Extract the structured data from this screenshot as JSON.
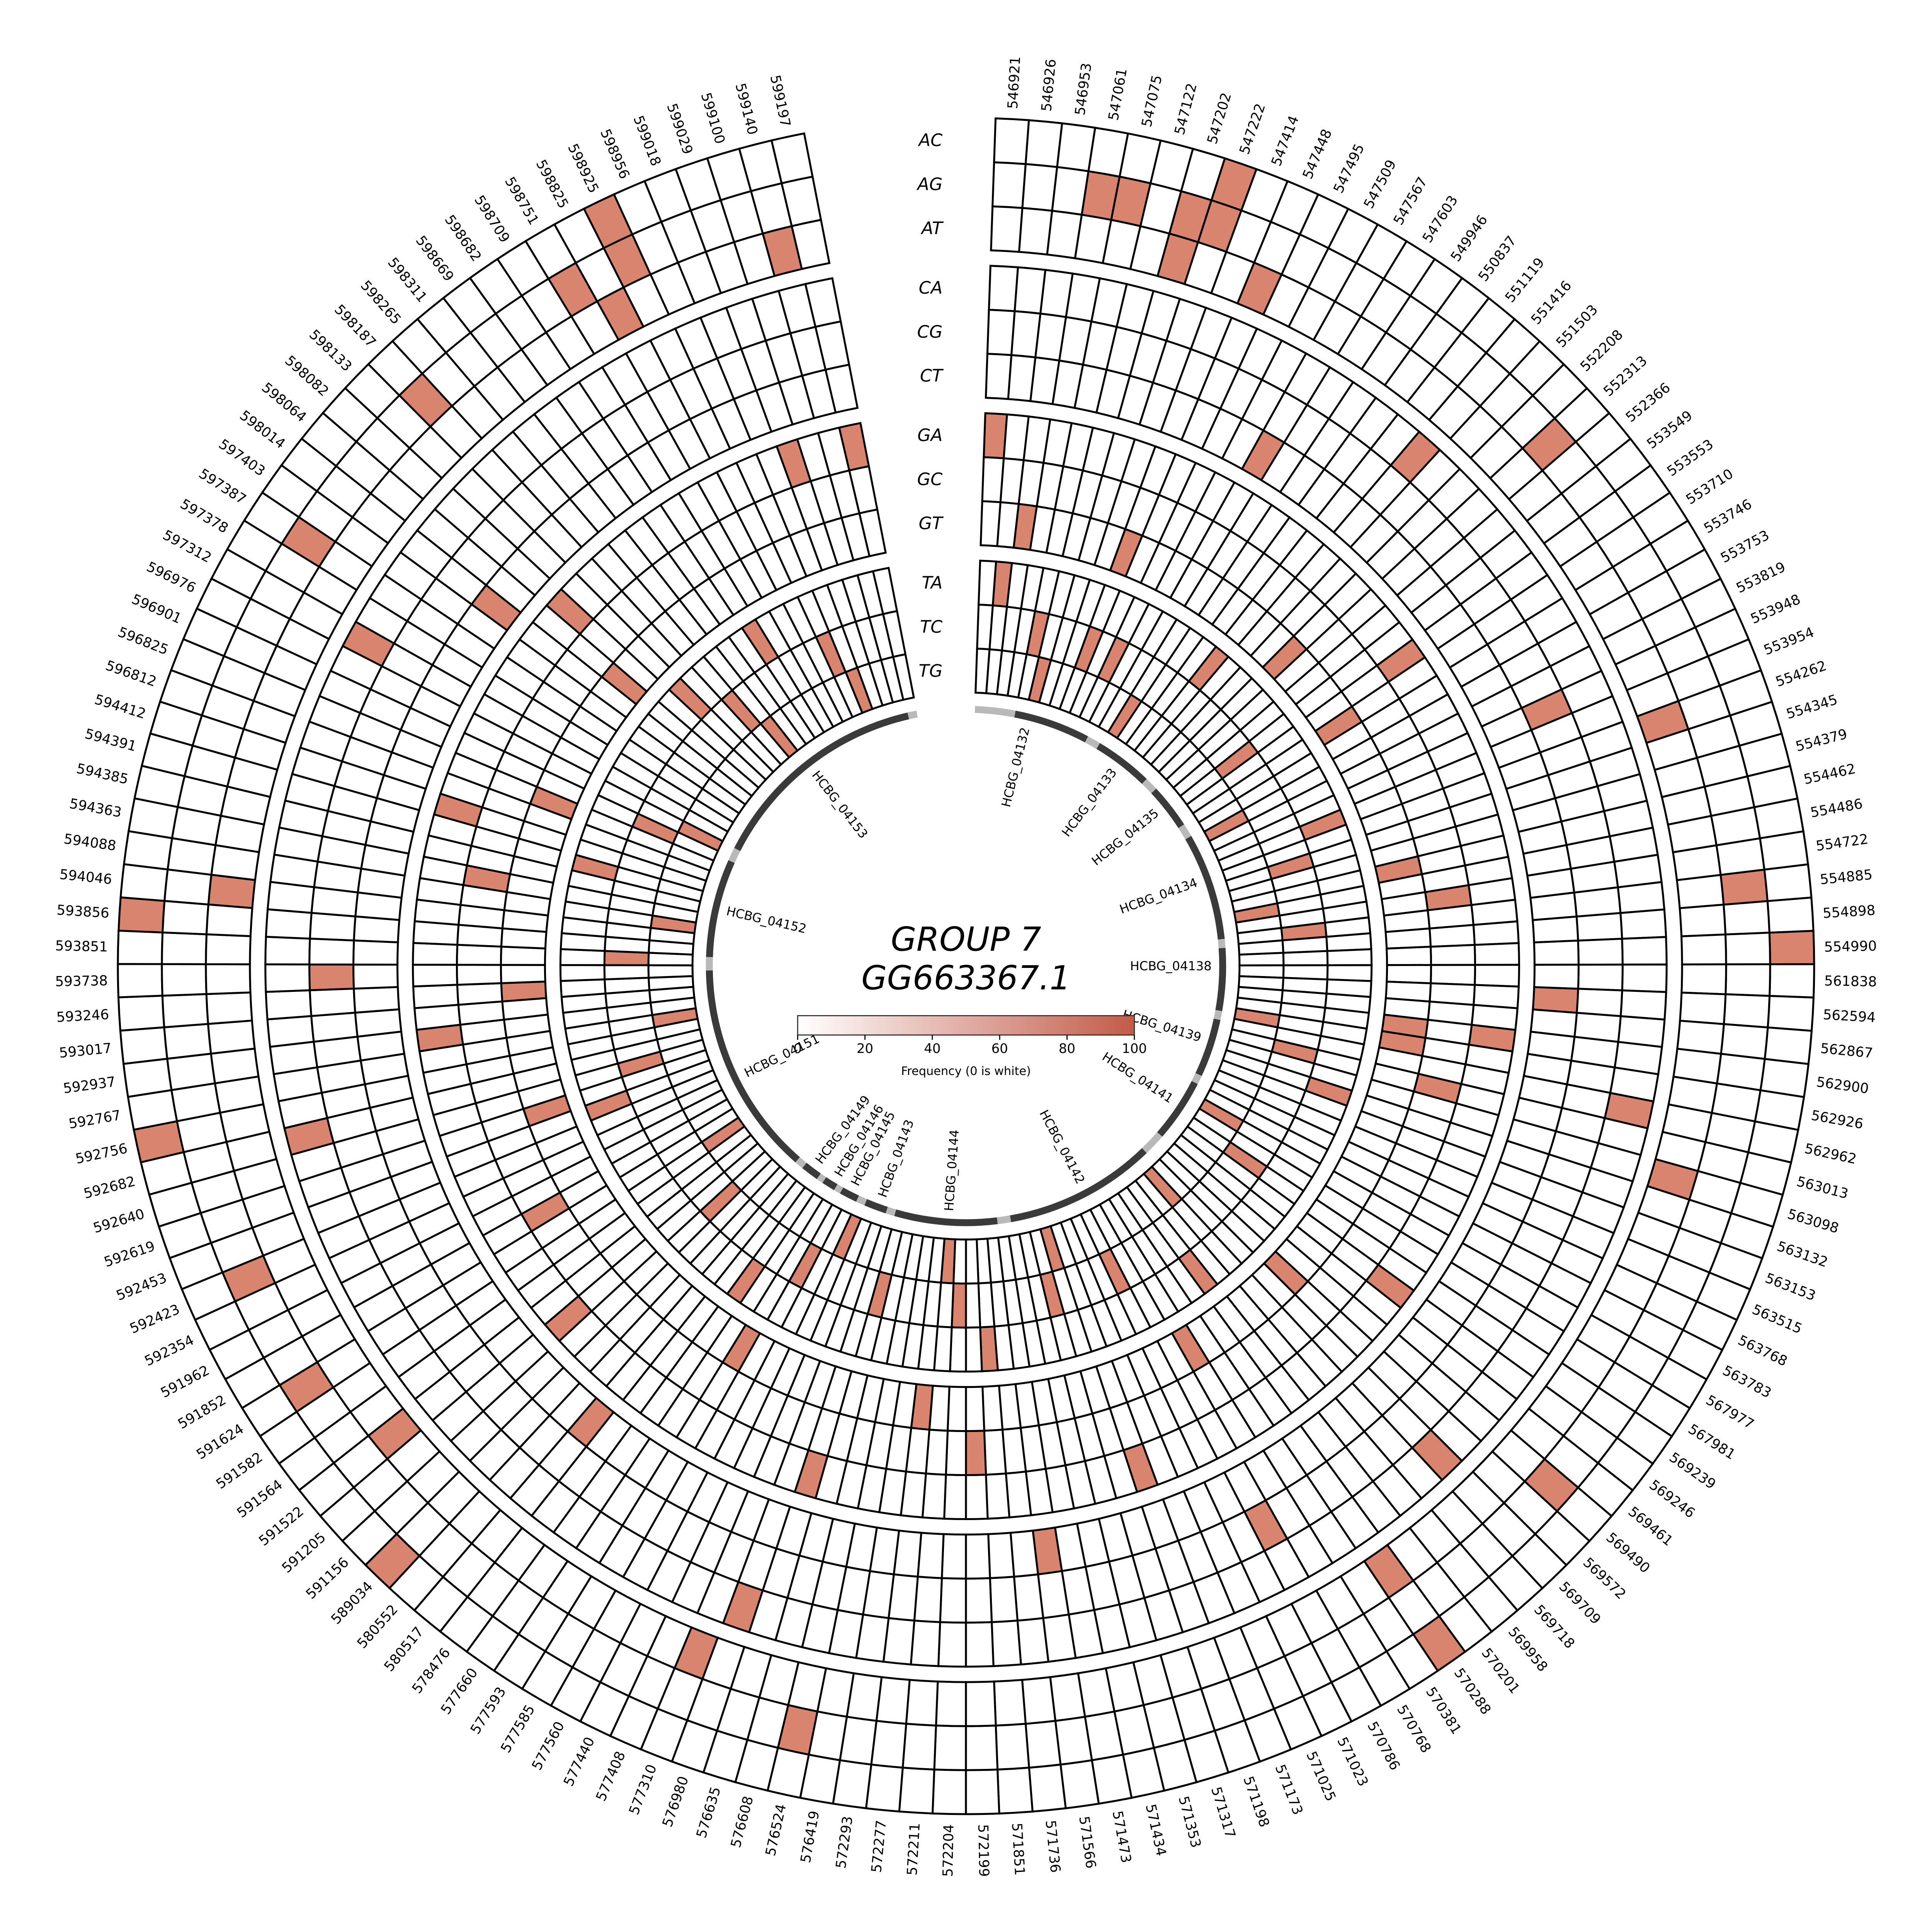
{
  "title": {
    "line1": "GROUP 7",
    "line2": "GG663367.1"
  },
  "legend": {
    "caption": "Frequency (0 is white)",
    "ticks": [
      0,
      20,
      40,
      60,
      80,
      100
    ],
    "min_color": "#ffffff",
    "max_color": "#c25b48"
  },
  "colors": {
    "cell_fill": "#d8846e",
    "cell_empty": "#ffffff",
    "cell_stroke": "#000000",
    "gene_arc": "#3a3a3a",
    "gene_gap": "#b9b9b9"
  },
  "chart_data": {
    "type": "heatmap",
    "layout": "circular",
    "title": "GROUP 7 GG663367.1",
    "colorbar_label": "Frequency (0 is white)",
    "colorbar_range": [
      0,
      100
    ],
    "fill_value": 70,
    "angle_start_deg": 2,
    "angle_end_deg": 349,
    "ring_groups": [
      [
        "AC",
        "AG",
        "AT"
      ],
      [
        "CA",
        "CG",
        "CT"
      ],
      [
        "GA",
        "GC",
        "GT"
      ],
      [
        "TA",
        "TC",
        "TG"
      ]
    ],
    "rings": [
      "AC",
      "AG",
      "AT",
      "CA",
      "CG",
      "CT",
      "GA",
      "GC",
      "GT",
      "TA",
      "TC",
      "TG"
    ],
    "positions": [
      "546921",
      "546926",
      "546953",
      "547061",
      "547075",
      "547122",
      "547202",
      "547222",
      "547414",
      "547448",
      "547495",
      "547509",
      "547567",
      "547603",
      "549946",
      "550837",
      "551119",
      "551416",
      "551503",
      "552208",
      "552313",
      "552366",
      "553549",
      "553553",
      "553710",
      "553746",
      "553753",
      "553819",
      "553948",
      "553954",
      "554262",
      "554345",
      "554379",
      "554462",
      "554486",
      "554722",
      "554885",
      "554898",
      "554990",
      "561838",
      "562594",
      "562867",
      "562900",
      "562926",
      "562962",
      "563013",
      "563098",
      "563132",
      "563153",
      "563515",
      "563768",
      "563783",
      "567977",
      "567981",
      "569239",
      "569246",
      "569461",
      "569490",
      "569572",
      "569709",
      "569718",
      "569958",
      "570201",
      "570288",
      "570381",
      "570768",
      "570786",
      "571023",
      "571025",
      "571173",
      "571198",
      "571317",
      "571353",
      "571434",
      "571473",
      "571566",
      "571736",
      "571851",
      "572199",
      "572204",
      "572211",
      "572277",
      "572293",
      "576419",
      "576524",
      "576608",
      "576635",
      "576980",
      "577310",
      "577408",
      "577440",
      "577560",
      "577585",
      "577593",
      "577660",
      "578476",
      "580517",
      "580552",
      "589034",
      "591156",
      "591205",
      "591522",
      "591564",
      "591582",
      "591624",
      "591852",
      "591962",
      "592354",
      "592423",
      "592453",
      "592619",
      "592640",
      "592682",
      "592756",
      "592767",
      "592937",
      "593017",
      "593246",
      "593738",
      "593851",
      "593856",
      "594046",
      "594088",
      "594363",
      "594385",
      "594391",
      "594412",
      "596812",
      "596825",
      "596901",
      "596976",
      "597312",
      "597378",
      "597387",
      "597403",
      "598014",
      "598064",
      "598082",
      "598133",
      "598187",
      "598265",
      "598311",
      "598669",
      "598682",
      "598709",
      "598751",
      "598825",
      "598925",
      "598956",
      "599018",
      "599029",
      "599100",
      "599140",
      "599197"
    ],
    "filled_cells": [
      [
        "AC",
        "547222"
      ],
      [
        "AC",
        "554990"
      ],
      [
        "AC",
        "570288"
      ],
      [
        "AC",
        "589034"
      ],
      [
        "AC",
        "592756"
      ],
      [
        "AC",
        "593856"
      ],
      [
        "AC",
        "598925"
      ],
      [
        "AG",
        "547061"
      ],
      [
        "AG",
        "547075"
      ],
      [
        "AG",
        "547202"
      ],
      [
        "AG",
        "547222"
      ],
      [
        "AG",
        "552313"
      ],
      [
        "AG",
        "554885"
      ],
      [
        "AG",
        "569490"
      ],
      [
        "AG",
        "576524"
      ],
      [
        "AG",
        "591624"
      ],
      [
        "AG",
        "592423"
      ],
      [
        "AG",
        "597387"
      ],
      [
        "AG",
        "598187"
      ],
      [
        "AG",
        "598751"
      ],
      [
        "AG",
        "598925"
      ],
      [
        "AT",
        "547202"
      ],
      [
        "AT",
        "547448"
      ],
      [
        "AT",
        "554262"
      ],
      [
        "AT",
        "563098"
      ],
      [
        "AT",
        "570288"
      ],
      [
        "AT",
        "577310"
      ],
      [
        "AT",
        "591522"
      ],
      [
        "AT",
        "594046"
      ],
      [
        "AT",
        "598825"
      ],
      [
        "AT",
        "599140"
      ],
      [
        "CA",
        "551416"
      ],
      [
        "CA",
        "562962"
      ],
      [
        "CA",
        "569709"
      ],
      [
        "CA",
        "576980"
      ],
      [
        "CA",
        "592682"
      ],
      [
        "CA",
        "597312"
      ],
      [
        "CG",
        "553948"
      ],
      [
        "CG",
        "570786"
      ],
      [
        "CG",
        "593738"
      ],
      [
        "CT",
        "547567"
      ],
      [
        "CT",
        "562594"
      ],
      [
        "CT",
        "571566"
      ],
      [
        "CT",
        "580517"
      ],
      [
        "CT",
        "598014"
      ],
      [
        "GA",
        "546921"
      ],
      [
        "GA",
        "553553"
      ],
      [
        "GA",
        "562900"
      ],
      [
        "GA",
        "569246"
      ],
      [
        "GA",
        "571198"
      ],
      [
        "GA",
        "576635"
      ],
      [
        "GA",
        "591205"
      ],
      [
        "GA",
        "592937"
      ],
      [
        "GA",
        "594412"
      ],
      [
        "GA",
        "598082"
      ],
      [
        "GA",
        "599029"
      ],
      [
        "GA",
        "599197"
      ],
      [
        "GC",
        "554722"
      ],
      [
        "GC",
        "563013"
      ],
      [
        "GC",
        "572199"
      ],
      [
        "GC",
        "591852"
      ],
      [
        "GC",
        "594363"
      ],
      [
        "GT",
        "546953"
      ],
      [
        "GT",
        "547414"
      ],
      [
        "GT",
        "552208"
      ],
      [
        "GT",
        "553710"
      ],
      [
        "GT",
        "554462"
      ],
      [
        "GT",
        "562900"
      ],
      [
        "GT",
        "562926"
      ],
      [
        "GT",
        "569572"
      ],
      [
        "GT",
        "570768"
      ],
      [
        "GT",
        "572277"
      ],
      [
        "GT",
        "577585"
      ],
      [
        "GT",
        "592619"
      ],
      [
        "GT",
        "593246"
      ],
      [
        "GT",
        "596825"
      ],
      [
        "GT",
        "598064"
      ],
      [
        "TA",
        "546926"
      ],
      [
        "TA",
        "551119"
      ],
      [
        "TA",
        "553954"
      ],
      [
        "TA",
        "563132"
      ],
      [
        "TA",
        "570201"
      ],
      [
        "TA",
        "571851"
      ],
      [
        "TA",
        "577660"
      ],
      [
        "TA",
        "592453"
      ],
      [
        "TA",
        "594391"
      ],
      [
        "TA",
        "598133"
      ],
      [
        "TA",
        "598709"
      ],
      [
        "TC",
        "547075"
      ],
      [
        "TC",
        "547414"
      ],
      [
        "TC",
        "547495"
      ],
      [
        "TC",
        "553549"
      ],
      [
        "TC",
        "554345"
      ],
      [
        "TC",
        "554885"
      ],
      [
        "TC",
        "563013"
      ],
      [
        "TC",
        "569239"
      ],
      [
        "TC",
        "571023"
      ],
      [
        "TC",
        "571353"
      ],
      [
        "TC",
        "572204"
      ],
      [
        "TC",
        "576608"
      ],
      [
        "TC",
        "577560"
      ],
      [
        "TC",
        "591156"
      ],
      [
        "TC",
        "592640"
      ],
      [
        "TC",
        "593851"
      ],
      [
        "TC",
        "596901"
      ],
      [
        "TC",
        "598265"
      ],
      [
        "TC",
        "598956"
      ],
      [
        "TG",
        "547122"
      ],
      [
        "TG",
        "547603"
      ],
      [
        "TG",
        "553753"
      ],
      [
        "TG",
        "554486"
      ],
      [
        "TG",
        "562926"
      ],
      [
        "TG",
        "567977"
      ],
      [
        "TG",
        "569718"
      ],
      [
        "TG",
        "571317"
      ],
      [
        "TG",
        "572211"
      ],
      [
        "TG",
        "577408"
      ],
      [
        "TG",
        "591582"
      ],
      [
        "TG",
        "592767"
      ],
      [
        "TG",
        "594088"
      ],
      [
        "TG",
        "596976"
      ],
      [
        "TG",
        "598311"
      ],
      [
        "TG",
        "599018"
      ]
    ],
    "genes": [
      {
        "name": "HCBG_04132",
        "start_deg": 11,
        "end_deg": 28,
        "label_deg": 14
      },
      {
        "name": "HCBG_04133",
        "start_deg": 31,
        "end_deg": 44,
        "label_deg": 37
      },
      {
        "name": "HCBG_04135",
        "start_deg": 47,
        "end_deg": 57,
        "label_deg": 51
      },
      {
        "name": "HCBG_04134",
        "start_deg": 60,
        "end_deg": 84,
        "label_deg": 70
      },
      {
        "name": "HCBG_04138",
        "start_deg": 86,
        "end_deg": 100,
        "label_deg": 90
      },
      {
        "name": "HCBG_04139",
        "start_deg": 102,
        "end_deg": 115,
        "label_deg": 107
      },
      {
        "name": "HCBG_04141",
        "start_deg": 117,
        "end_deg": 131,
        "label_deg": 123
      },
      {
        "name": "HCBG_04142",
        "start_deg": 136,
        "end_deg": 170,
        "label_deg": 152
      },
      {
        "name": "HCBG_04144",
        "start_deg": 173,
        "end_deg": 196,
        "label_deg": 184
      },
      {
        "name": "HCBG_04143",
        "start_deg": 198,
        "end_deg": 203,
        "label_deg": 200
      },
      {
        "name": "HCBG_04145",
        "start_deg": 205,
        "end_deg": 209,
        "label_deg": 207
      },
      {
        "name": "HCBG_04146",
        "start_deg": 210.5,
        "end_deg": 213.5,
        "label_deg": 211.5
      },
      {
        "name": "HCBG_04149",
        "start_deg": 215,
        "end_deg": 219,
        "label_deg": 217
      },
      {
        "name": "HCBG_04151",
        "start_deg": 221,
        "end_deg": 269,
        "label_deg": 244
      },
      {
        "name": "HCBG_04152",
        "start_deg": 272,
        "end_deg": 294,
        "label_deg": 283
      },
      {
        "name": "HCBG_04153",
        "start_deg": 297,
        "end_deg": 347,
        "label_deg": 322
      }
    ]
  }
}
